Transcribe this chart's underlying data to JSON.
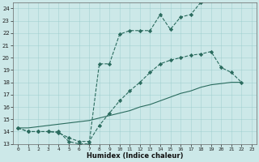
{
  "xlabel": "Humidex (Indice chaleur)",
  "xlim": [
    -0.5,
    23.5
  ],
  "ylim": [
    13,
    24.5
  ],
  "yticks": [
    13,
    14,
    15,
    16,
    17,
    18,
    19,
    20,
    21,
    22,
    23,
    24
  ],
  "xticks": [
    0,
    1,
    2,
    3,
    4,
    5,
    6,
    7,
    8,
    9,
    10,
    11,
    12,
    13,
    14,
    15,
    16,
    17,
    18,
    19,
    20,
    21,
    22,
    23
  ],
  "bg_color": "#cce8e8",
  "line_color": "#2a6b5e",
  "line1_x": [
    0,
    1,
    2,
    3,
    4,
    5,
    6,
    7,
    8,
    9,
    10,
    11,
    12,
    13,
    14,
    15,
    16,
    17,
    18
  ],
  "line1_y": [
    14.3,
    14.0,
    14.0,
    14.0,
    14.0,
    13.2,
    13.0,
    13.0,
    19.5,
    19.5,
    21.9,
    22.2,
    22.2,
    22.2,
    23.5,
    22.3,
    23.3,
    23.5,
    24.5
  ],
  "line2_x": [
    0,
    1,
    2,
    3,
    4,
    5,
    6,
    7,
    8,
    9,
    10,
    11,
    12,
    13,
    14,
    15,
    16,
    17,
    18,
    19,
    20,
    21,
    22
  ],
  "line2_y": [
    14.3,
    14.3,
    14.4,
    14.5,
    14.6,
    14.7,
    14.8,
    14.9,
    15.1,
    15.3,
    15.5,
    15.7,
    16.0,
    16.2,
    16.5,
    16.8,
    17.1,
    17.3,
    17.6,
    17.8,
    17.9,
    18.0,
    18.0
  ],
  "line3_x": [
    0,
    1,
    2,
    3,
    4,
    5,
    6,
    7,
    8,
    9,
    10,
    11,
    12,
    13,
    14,
    15,
    16,
    17,
    18,
    19,
    20,
    21,
    22
  ],
  "line3_y": [
    14.3,
    14.0,
    14.0,
    14.0,
    13.9,
    13.5,
    13.2,
    13.2,
    14.5,
    15.5,
    16.5,
    17.3,
    18.0,
    18.8,
    19.5,
    19.8,
    20.0,
    20.2,
    20.3,
    20.5,
    19.2,
    18.8,
    18.0
  ]
}
